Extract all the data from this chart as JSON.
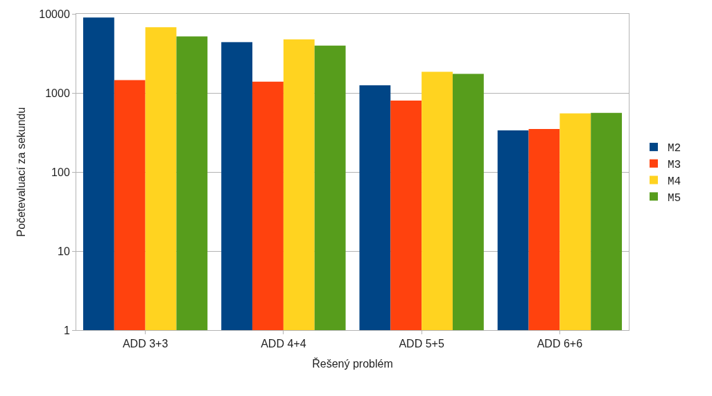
{
  "chart_data": {
    "type": "bar",
    "xlabel": "Řešený problém",
    "ylabel": "Početevaluací za sekundu",
    "categories": [
      "ADD 3+3",
      "ADD 4+4",
      "ADD 5+5",
      "ADD 6+6"
    ],
    "series": [
      {
        "name": "M2",
        "color": "#004586",
        "values": [
          9000,
          4400,
          1250,
          336
        ]
      },
      {
        "name": "M3",
        "color": "#ff420e",
        "values": [
          1450,
          1390,
          800,
          350
        ]
      },
      {
        "name": "M4",
        "color": "#ffd320",
        "values": [
          6770,
          4770,
          1850,
          550
        ]
      },
      {
        "name": "M5",
        "color": "#579d1c",
        "values": [
          5180,
          3960,
          1740,
          560
        ]
      }
    ],
    "log": "y",
    "ylim": [
      1,
      10000
    ],
    "yticks": [
      1,
      10,
      100,
      1000,
      10000
    ],
    "grid": "y",
    "legend": "right"
  }
}
